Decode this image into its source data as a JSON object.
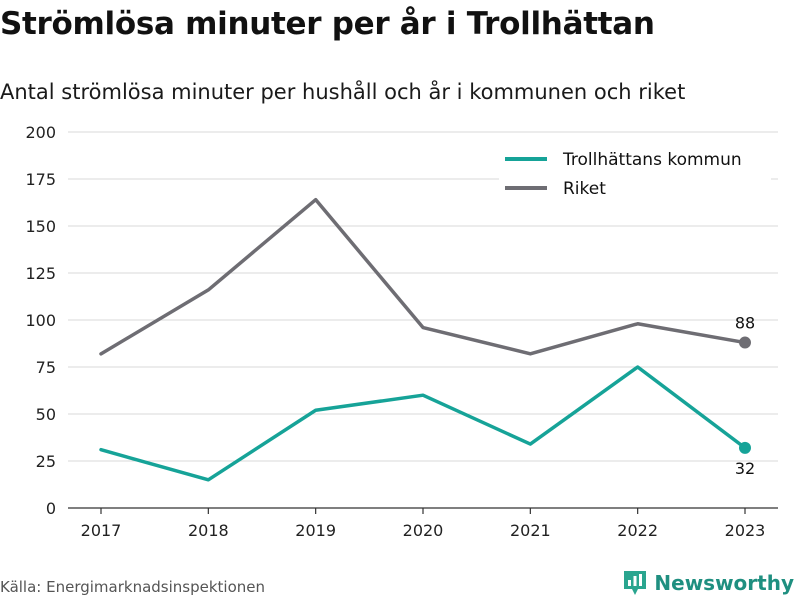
{
  "header": {
    "title": "Strömlösa minuter per år i Trollhättan",
    "subtitle": "Antal strömlösa minuter per hushåll och år i kommunen och riket"
  },
  "footer": {
    "source": "Källa: Energimarknadsinspektionen",
    "brand": "Newsworthy"
  },
  "colors": {
    "kommun": "#16a398",
    "riket": "#6e6d73",
    "grid": "#d9d9d9",
    "brand": "#1f8f80"
  },
  "chart_data": {
    "type": "line",
    "categories": [
      "2017",
      "2018",
      "2019",
      "2020",
      "2021",
      "2022",
      "2023"
    ],
    "series": [
      {
        "name": "Trollhättans kommun",
        "values": [
          31,
          15,
          52,
          60,
          34,
          75,
          32
        ],
        "end_label": "32"
      },
      {
        "name": "Riket",
        "values": [
          82,
          116,
          164,
          96,
          82,
          98,
          88
        ],
        "end_label": "88"
      }
    ],
    "ylim": [
      0,
      200
    ],
    "yticks": [
      "0",
      "25",
      "50",
      "75",
      "100",
      "125",
      "150",
      "175",
      "200"
    ],
    "grid": true,
    "legend": "top-right"
  }
}
